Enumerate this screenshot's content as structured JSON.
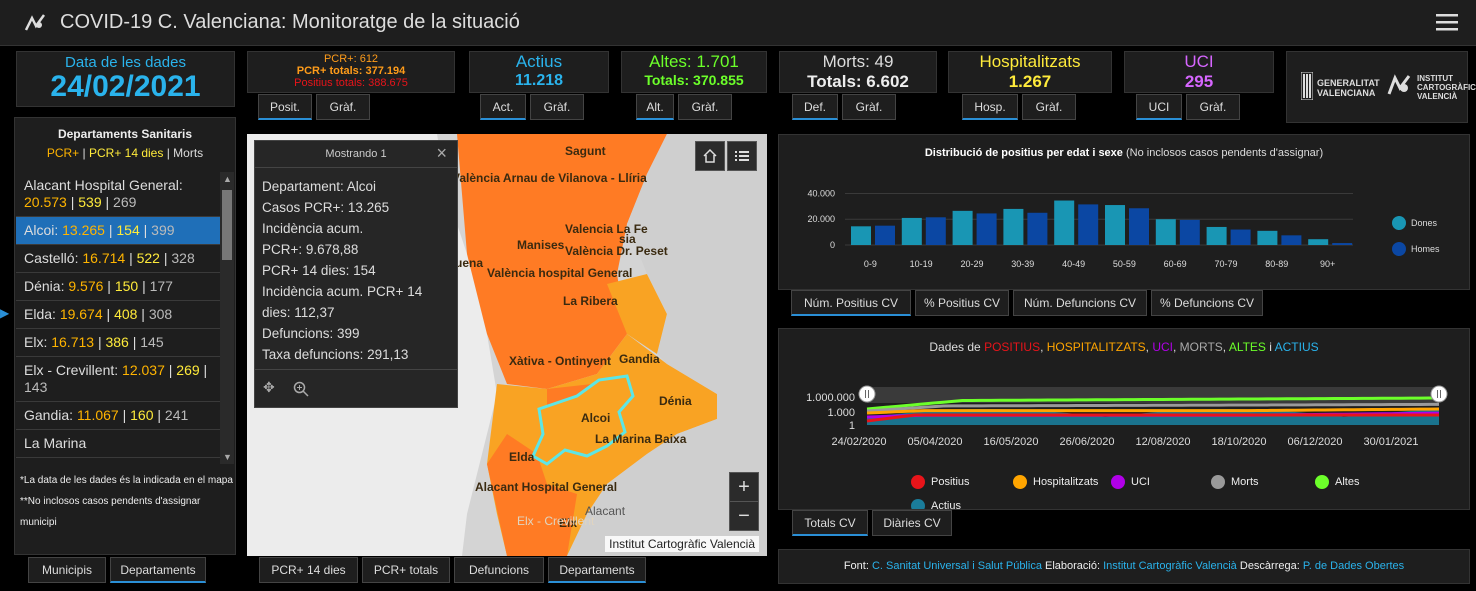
{
  "header": {
    "title": "COVID-19 C. Valenciana: Monitoratge de la situació"
  },
  "date_card": {
    "label": "Data de les dades",
    "value": "24/02/2021"
  },
  "pcr_card": {
    "l1": "PCR+: 612",
    "l2": "PCR+ totals: 377.194",
    "l3": "Positius totals: 388.675"
  },
  "actius_card": {
    "label": "Actius",
    "value": "11.218"
  },
  "altes_card": {
    "label": "Altes: 1.701",
    "value": "Totals: 370.855"
  },
  "morts_card": {
    "label": "Morts: 49",
    "value": "Totals: 6.602"
  },
  "hosp_card": {
    "label": "Hospitalitzats",
    "value": "1.267"
  },
  "uci_card": {
    "label": "UCI",
    "value": "295"
  },
  "tabs": {
    "posit": "Posit.",
    "graf": "Gràf.",
    "act": "Act.",
    "alt": "Alt.",
    "def": "Def.",
    "hosp": "Hosp.",
    "uci": "UCI"
  },
  "logos": {
    "gv1": "GENERALITAT",
    "gv2": "VALENCIANA",
    "icv1": "INSTITUT",
    "icv2": "CARTOGRÀFIC",
    "icv3": "VALENCIÀ"
  },
  "dept_panel": {
    "title": "Departaments Sanitaris",
    "legend_a": "PCR+",
    "legend_b": "PCR+ 14 dies",
    "legend_c": "Morts",
    "items": [
      {
        "name": "Alacant Hospital General:",
        "a": "20.573",
        "b": "539",
        "c": "269"
      },
      {
        "name": "Alcoi:",
        "a": "13.265",
        "b": "154",
        "c": "399"
      },
      {
        "name": "Castelló:",
        "a": "16.714",
        "b": "522",
        "c": "328"
      },
      {
        "name": "Dénia:",
        "a": "9.576",
        "b": "150",
        "c": "177"
      },
      {
        "name": "Elda:",
        "a": "19.674",
        "b": "408",
        "c": "308"
      },
      {
        "name": "Elx:",
        "a": "16.713",
        "b": "386",
        "c": "145"
      },
      {
        "name": "Elx - Crevillent:",
        "a": "12.037",
        "b": "269",
        "c": "143"
      },
      {
        "name": "Gandia:",
        "a": "11.067",
        "b": "160",
        "c": "241"
      },
      {
        "name": "La Marina",
        "a": "",
        "b": "",
        "c": ""
      }
    ],
    "note1": "*La data de les dades és la indicada en el mapa",
    "note2": "**No inclosos casos pendents d'assignar municipi"
  },
  "left_tabs": {
    "municipis": "Municipis",
    "departaments": "Departaments"
  },
  "popup": {
    "header": "Mostrando 1",
    "lines": [
      "Departament: Alcoi",
      "Casos PCR+: 13.265",
      "Incidència acum.",
      "PCR+: 9.678,88",
      "PCR+ 14 dies: 154",
      "Incidència acum. PCR+ 14",
      "dies: 112,37",
      "Defuncions: 399",
      "Taxa defuncions: 291,13"
    ]
  },
  "map": {
    "labels": [
      "Sagunt",
      "València Arnau de Vilanova - Llíria",
      "Valencia La Fe",
      "València Dr. Peset",
      "Manises",
      "València hospital General",
      "La Ribera",
      "Xàtiva - Ontinyent",
      "Gandia",
      "Dénia",
      "Alcoi",
      "La Marina Baixa",
      "Elda",
      "Alacant Hospital General",
      "Elx",
      "Elx - Crevillent",
      "Alacant",
      "uena",
      "sia"
    ],
    "attribution": "Institut Cartogràfic Valencià"
  },
  "map_tabs": {
    "pcr14": "PCR+ 14 dies",
    "pcrtot": "PCR+ totals",
    "def": "Defuncions",
    "dep": "Departaments"
  },
  "age_chart": {
    "title": "Distribució de positius per edat i sexe",
    "subtitle": "(No inclosos casos pendents d'assignar)"
  },
  "chart_data": [
    {
      "type": "bar",
      "categories": [
        "0-9",
        "10-19",
        "20-29",
        "30-39",
        "40-49",
        "50-59",
        "60-69",
        "70-79",
        "80-89",
        "90+"
      ],
      "series": [
        {
          "name": "Dones",
          "values": [
            14500,
            21000,
            26500,
            28000,
            34500,
            31000,
            20000,
            14000,
            11000,
            4500
          ]
        },
        {
          "name": "Homes",
          "values": [
            15000,
            21500,
            24500,
            25000,
            31500,
            28500,
            19500,
            12000,
            7500,
            1500
          ]
        }
      ],
      "yticks": [
        "40.000",
        "20.000",
        "0"
      ],
      "ylim": [
        0,
        45000
      ],
      "legend": "right",
      "colors": [
        "#1996b4",
        "#0b47a3"
      ]
    },
    {
      "type": "line",
      "title_parts": [
        "Dades de ",
        "POSITIUS",
        ", ",
        "HOSPITALITZATS",
        ", ",
        "UCI",
        ", ",
        "MORTS",
        ", ",
        "ALTES",
        " i ",
        "ACTIUS"
      ],
      "xticks": [
        "24/02/2020",
        "05/04/2020",
        "16/05/2020",
        "26/06/2020",
        "12/08/2020",
        "18/10/2020",
        "06/12/2020",
        "30/01/2021"
      ],
      "yticks": [
        "1.000.000",
        "1.000",
        "1"
      ],
      "yscale": "log",
      "series": [
        {
          "name": "Positius",
          "color": "#e8141a"
        },
        {
          "name": "Hospitalitzats",
          "color": "#ffa500"
        },
        {
          "name": "UCI",
          "color": "#b100e8"
        },
        {
          "name": "Morts",
          "color": "#9a9a9a"
        },
        {
          "name": "Altes",
          "color": "#6cff2a"
        },
        {
          "name": "Actius",
          "color": "#1a7c9a"
        }
      ]
    }
  ],
  "age_tabs": {
    "t1": "Núm. Positius CV",
    "t2": "% Positius CV",
    "t3": "Núm. Defuncions CV",
    "t4": "% Defuncions CV"
  },
  "ts_tabs": {
    "t1": "Totals CV",
    "t2": "Diàries CV"
  },
  "footer": {
    "font_label": "Font:",
    "font_val": "C. Sanitat Universal i Salut Pública",
    "elab_label": "Elaboració:",
    "elab_val": "Institut Cartogràfic Valencià",
    "desc_label": "Descàrrega:",
    "desc_val": "P. de Dades Obertes"
  }
}
